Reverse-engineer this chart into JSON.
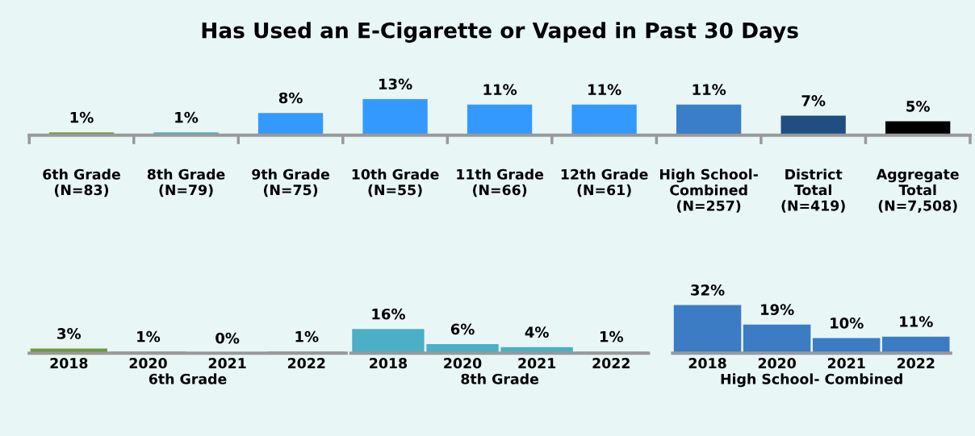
{
  "chart_data": [
    {
      "type": "bar",
      "title": "Has Used an E-Cigarette or Vaped in Past 30 Days",
      "categories": [
        "6th Grade\n(N=83)",
        "8th Grade\n(N=79)",
        "9th Grade\n(N=75)",
        "10th Grade\n(N=55)",
        "11th Grade\n(N=66)",
        "12th Grade\n(N=61)",
        "High School-\nCombined\n(N=257)",
        "District\nTotal\n(N=419)",
        "Aggregate\nTotal\n(N=7,508)"
      ],
      "values": [
        1,
        1,
        8,
        13,
        11,
        11,
        11,
        7,
        5
      ],
      "value_labels": [
        "1%",
        "1%",
        "8%",
        "13%",
        "11%",
        "11%",
        "11%",
        "7%",
        "5%"
      ],
      "colors": [
        "#6a9a3a",
        "#4bacc6",
        "#3399ff",
        "#3399ff",
        "#3399ff",
        "#3399ff",
        "#3a7dc8",
        "#1f4e80",
        "#000000"
      ]
    },
    {
      "type": "bar",
      "xlabel": "6th Grade",
      "categories": [
        "2018",
        "2020",
        "2021",
        "2022"
      ],
      "values": [
        3,
        1,
        0,
        1
      ],
      "value_labels": [
        "3%",
        "1%",
        "0%",
        "1%"
      ],
      "colors": [
        "#6a9a3a",
        "#6a9a3a",
        "#6a9a3a",
        "#6a9a3a"
      ]
    },
    {
      "type": "bar",
      "xlabel": "8th Grade",
      "categories": [
        "2018",
        "2020",
        "2021",
        "2022"
      ],
      "values": [
        16,
        6,
        4,
        1
      ],
      "value_labels": [
        "16%",
        "6%",
        "4%",
        "1%"
      ],
      "colors": [
        "#4bafc6",
        "#4bafc6",
        "#4bafc6",
        "#4bafc6"
      ]
    },
    {
      "type": "bar",
      "xlabel": "High School- Combined",
      "categories": [
        "2018",
        "2020",
        "2021",
        "2022"
      ],
      "values": [
        32,
        19,
        10,
        11
      ],
      "value_labels": [
        "32%",
        "19%",
        "10%",
        "11%"
      ],
      "colors": [
        "#3b7cc4",
        "#3b7cc4",
        "#3b7cc4",
        "#3b7cc4"
      ]
    }
  ]
}
